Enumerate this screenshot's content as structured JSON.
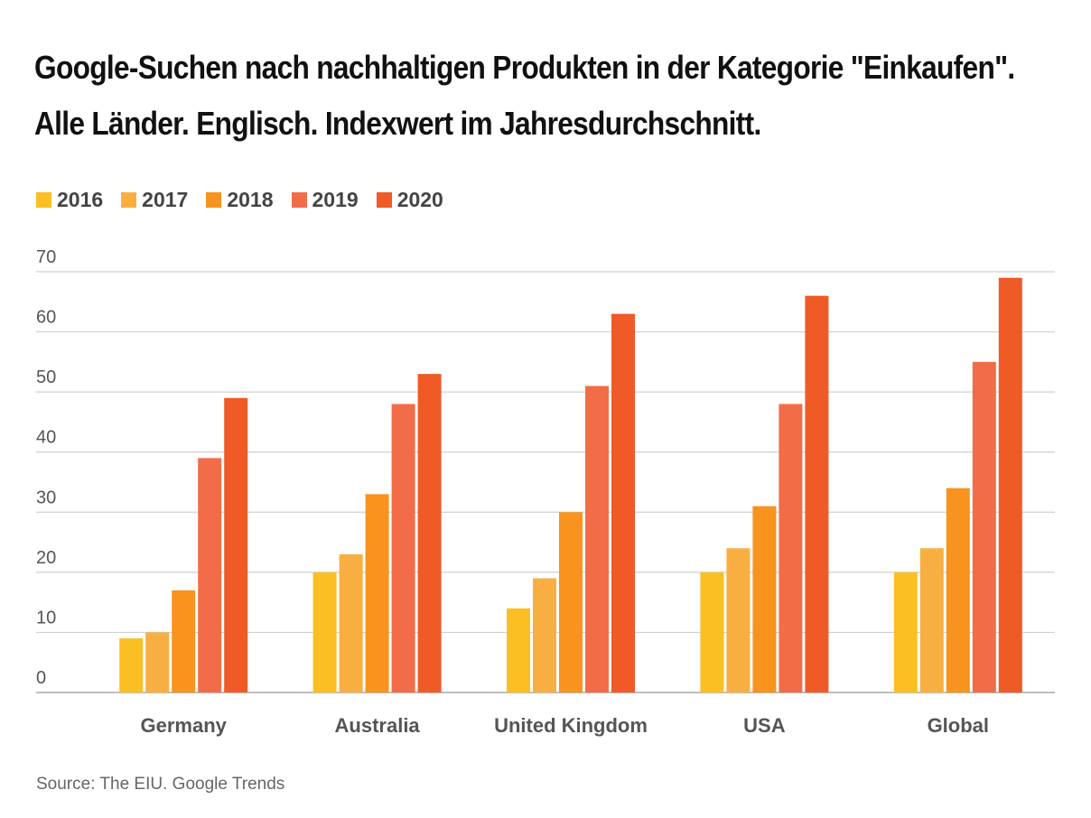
{
  "title_lines": [
    "Google-Suchen nach nachhaltigen Produkten in der Kategorie \"Einkaufen\".",
    "Alle Länder. Englisch. Indexwert im Jahresdurchschnitt."
  ],
  "source": "Source: The EIU. Google Trends",
  "chart_data": {
    "type": "bar",
    "categories": [
      "Germany",
      "Australia",
      "United Kingdom",
      "USA",
      "Global"
    ],
    "series": [
      {
        "name": "2016",
        "color": "#FBBF24",
        "values": [
          9,
          20,
          14,
          20,
          20
        ]
      },
      {
        "name": "2017",
        "color": "#F9AE42",
        "values": [
          10,
          23,
          19,
          24,
          24
        ]
      },
      {
        "name": "2018",
        "color": "#F7931E",
        "values": [
          17,
          33,
          30,
          31,
          34
        ]
      },
      {
        "name": "2019",
        "color": "#F26D47",
        "values": [
          39,
          48,
          51,
          48,
          55
        ]
      },
      {
        "name": "2020",
        "color": "#EF5A26",
        "values": [
          49,
          53,
          63,
          66,
          69
        ]
      }
    ],
    "ylim": [
      0,
      70
    ],
    "yticks": [
      0,
      10,
      20,
      30,
      40,
      50,
      60,
      70
    ],
    "grid": true,
    "legend": "top-left",
    "xlabel": "",
    "ylabel": ""
  }
}
